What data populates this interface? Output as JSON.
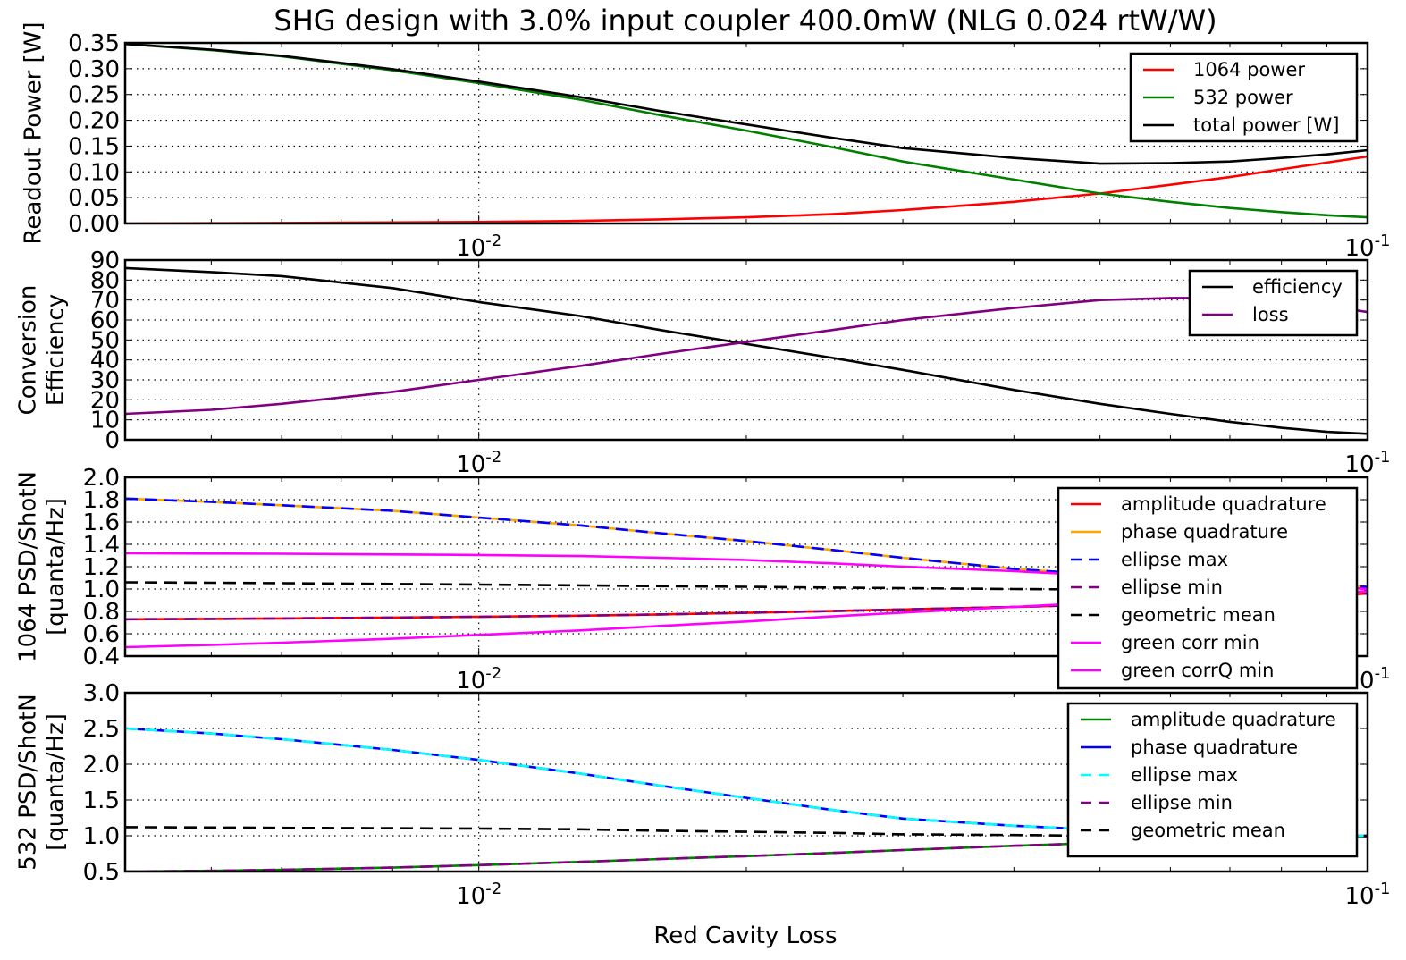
{
  "figure": {
    "title": "SHG design with 3.0% input coupler 400.0mW (NLG 0.024 rtW/W)",
    "xlabel": "Red Cavity Loss"
  },
  "chart_data": [
    {
      "type": "line",
      "id": "power",
      "xscale": "log",
      "xlim": [
        0.004,
        0.1
      ],
      "ylim": [
        0,
        0.35
      ],
      "yticks": [
        "0.00",
        "0.05",
        "0.10",
        "0.15",
        "0.20",
        "0.25",
        "0.30",
        "0.35"
      ],
      "xticks": [
        {
          "base": "10",
          "exp": "-2",
          "value": 0.01
        },
        {
          "base": "10",
          "exp": "-1",
          "value": 0.1
        }
      ],
      "ylabel_lines": [
        "Readout Power [W]"
      ],
      "grid": "dotted",
      "legend": "top-right",
      "x": [
        0.004,
        0.005,
        0.006,
        0.008,
        0.01,
        0.013,
        0.016,
        0.02,
        0.025,
        0.03,
        0.04,
        0.05,
        0.06,
        0.07,
        0.08,
        0.09,
        0.1
      ],
      "series": [
        {
          "name": "1064 power",
          "color": "#ff0000",
          "dash": "none",
          "values": [
            0.0,
            0.0005,
            0.001,
            0.002,
            0.003,
            0.005,
            0.008,
            0.012,
            0.018,
            0.026,
            0.042,
            0.058,
            0.075,
            0.09,
            0.105,
            0.118,
            0.13
          ]
        },
        {
          "name": "532 power",
          "color": "#008000",
          "dash": "none",
          "values": [
            0.348,
            0.336,
            0.324,
            0.297,
            0.272,
            0.24,
            0.21,
            0.18,
            0.148,
            0.12,
            0.085,
            0.058,
            0.042,
            0.03,
            0.022,
            0.016,
            0.012
          ]
        },
        {
          "name": "total power [W]",
          "color": "#000000",
          "dash": "none",
          "values": [
            0.348,
            0.337,
            0.325,
            0.299,
            0.275,
            0.245,
            0.218,
            0.192,
            0.166,
            0.146,
            0.127,
            0.116,
            0.117,
            0.12,
            0.127,
            0.134,
            0.142
          ]
        }
      ]
    },
    {
      "type": "line",
      "id": "efficiency",
      "xscale": "log",
      "xlim": [
        0.004,
        0.1
      ],
      "ylim": [
        0,
        90
      ],
      "yticks": [
        "0",
        "10",
        "20",
        "30",
        "40",
        "50",
        "60",
        "70",
        "80",
        "90"
      ],
      "xticks": [
        {
          "base": "10",
          "exp": "-2",
          "value": 0.01
        },
        {
          "base": "10",
          "exp": "-1",
          "value": 0.1
        }
      ],
      "ylabel_lines": [
        "Conversion",
        "Efficiency"
      ],
      "grid": "dotted",
      "legend": "top-right",
      "x": [
        0.004,
        0.005,
        0.006,
        0.008,
        0.01,
        0.013,
        0.016,
        0.02,
        0.025,
        0.03,
        0.04,
        0.05,
        0.06,
        0.07,
        0.08,
        0.09,
        0.1
      ],
      "series": [
        {
          "name": "efficiency",
          "color": "#000000",
          "dash": "none",
          "values": [
            86,
            84,
            82,
            76,
            69,
            62,
            55,
            48,
            41,
            35,
            25,
            18,
            13,
            9,
            6,
            4,
            3
          ]
        },
        {
          "name": "loss",
          "color": "#800080",
          "dash": "none",
          "values": [
            13,
            15,
            18,
            24,
            30,
            37,
            43,
            49,
            55,
            60,
            66,
            70,
            71,
            71,
            69,
            67,
            64
          ]
        }
      ]
    },
    {
      "type": "line",
      "id": "psd1064",
      "xscale": "log",
      "xlim": [
        0.004,
        0.1
      ],
      "ylim": [
        0.4,
        2.0
      ],
      "yticks": [
        "0.4",
        "0.6",
        "0.8",
        "1.0",
        "1.2",
        "1.4",
        "1.6",
        "1.8",
        "2.0"
      ],
      "xticks": [
        {
          "base": "10",
          "exp": "-2",
          "value": 0.01
        },
        {
          "base": "10",
          "exp": "-1",
          "value": 0.1
        }
      ],
      "ylabel_lines": [
        "1064  PSD/ShotN",
        "[quanta/Hz]"
      ],
      "grid": "dotted",
      "legend": "top-right",
      "x": [
        0.004,
        0.005,
        0.006,
        0.008,
        0.01,
        0.013,
        0.016,
        0.02,
        0.025,
        0.03,
        0.04,
        0.05,
        0.06,
        0.07,
        0.08,
        0.09,
        0.1
      ],
      "series": [
        {
          "name": "amplitude quadrature",
          "color": "#ff0000",
          "dash": "none",
          "values": [
            0.73,
            0.733,
            0.737,
            0.745,
            0.752,
            0.762,
            0.773,
            0.787,
            0.803,
            0.818,
            0.84,
            0.86,
            0.88,
            0.9,
            0.92,
            0.94,
            0.96
          ]
        },
        {
          "name": "phase quadrature",
          "color": "#ffa500",
          "dash": "none",
          "values": [
            1.81,
            1.78,
            1.75,
            1.7,
            1.64,
            1.57,
            1.5,
            1.43,
            1.35,
            1.28,
            1.18,
            1.13,
            1.1,
            1.07,
            1.05,
            1.03,
            1.02
          ]
        },
        {
          "name": "ellipse max",
          "color": "#0000ff",
          "dash": "dashed",
          "values": [
            1.81,
            1.78,
            1.75,
            1.7,
            1.64,
            1.57,
            1.5,
            1.43,
            1.35,
            1.28,
            1.18,
            1.13,
            1.1,
            1.07,
            1.05,
            1.03,
            1.02
          ]
        },
        {
          "name": "ellipse min",
          "color": "#800080",
          "dash": "dashed",
          "values": [
            0.73,
            0.733,
            0.737,
            0.745,
            0.752,
            0.762,
            0.773,
            0.787,
            0.803,
            0.818,
            0.84,
            0.86,
            0.88,
            0.9,
            0.92,
            0.94,
            0.96
          ]
        },
        {
          "name": "geometric mean",
          "color": "#000000",
          "dash": "dashed",
          "values": [
            1.06,
            1.056,
            1.052,
            1.046,
            1.04,
            1.033,
            1.026,
            1.02,
            1.013,
            1.008,
            1.0,
            0.995,
            0.99,
            0.99,
            0.99,
            0.99,
            0.99
          ]
        },
        {
          "name": "green corr min",
          "color": "#ff00ff",
          "dash": "none",
          "values": [
            1.32,
            1.318,
            1.316,
            1.31,
            1.305,
            1.295,
            1.28,
            1.26,
            1.23,
            1.2,
            1.16,
            1.12,
            1.09,
            1.06,
            1.04,
            1.02,
            1.0
          ]
        },
        {
          "name": "green corrQ min",
          "color": "#ff00ff",
          "dash": "none",
          "values": [
            0.48,
            0.5,
            0.52,
            0.555,
            0.59,
            0.63,
            0.67,
            0.71,
            0.755,
            0.79,
            0.84,
            0.88,
            0.91,
            0.93,
            0.95,
            0.965,
            0.98
          ]
        }
      ]
    },
    {
      "type": "line",
      "id": "psd532",
      "xscale": "log",
      "xlim": [
        0.004,
        0.1
      ],
      "ylim": [
        0.5,
        3.0
      ],
      "yticks": [
        "0.5",
        "1.0",
        "1.5",
        "2.0",
        "2.5",
        "3.0"
      ],
      "xticks": [
        {
          "base": "10",
          "exp": "-2",
          "value": 0.01
        },
        {
          "base": "10",
          "exp": "-1",
          "value": 0.1
        }
      ],
      "ylabel_lines": [
        "532  PSD/ShotN",
        "[quanta/Hz]"
      ],
      "grid": "dotted",
      "legend": "top-right",
      "x": [
        0.004,
        0.005,
        0.006,
        0.008,
        0.01,
        0.013,
        0.016,
        0.02,
        0.025,
        0.03,
        0.04,
        0.05,
        0.06,
        0.07,
        0.08,
        0.09,
        0.1
      ],
      "series": [
        {
          "name": "amplitude quadrature",
          "color": "#008000",
          "dash": "none",
          "values": [
            0.5,
            0.51,
            0.525,
            0.555,
            0.59,
            0.635,
            0.675,
            0.715,
            0.76,
            0.8,
            0.86,
            0.9,
            0.93,
            0.95,
            0.97,
            0.98,
            0.99
          ]
        },
        {
          "name": "phase quadrature",
          "color": "#0000ff",
          "dash": "none",
          "values": [
            2.5,
            2.43,
            2.35,
            2.2,
            2.06,
            1.87,
            1.7,
            1.53,
            1.36,
            1.24,
            1.14,
            1.08,
            1.05,
            1.03,
            1.01,
            1.0,
            1.0
          ]
        },
        {
          "name": "ellipse max",
          "color": "#00ffff",
          "dash": "dashed",
          "values": [
            2.5,
            2.43,
            2.35,
            2.2,
            2.06,
            1.87,
            1.7,
            1.53,
            1.36,
            1.24,
            1.14,
            1.08,
            1.05,
            1.03,
            1.01,
            1.0,
            1.0
          ]
        },
        {
          "name": "ellipse min",
          "color": "#800080",
          "dash": "dashed",
          "values": [
            0.5,
            0.51,
            0.525,
            0.555,
            0.59,
            0.635,
            0.675,
            0.715,
            0.76,
            0.8,
            0.86,
            0.9,
            0.93,
            0.95,
            0.97,
            0.98,
            0.99
          ]
        },
        {
          "name": "geometric mean",
          "color": "#000000",
          "dash": "dashed",
          "values": [
            1.12,
            1.115,
            1.11,
            1.105,
            1.1,
            1.09,
            1.07,
            1.055,
            1.04,
            1.02,
            1.01,
            1.0,
            1.0,
            1.0,
            1.0,
            1.0,
            1.0
          ]
        }
      ]
    }
  ]
}
